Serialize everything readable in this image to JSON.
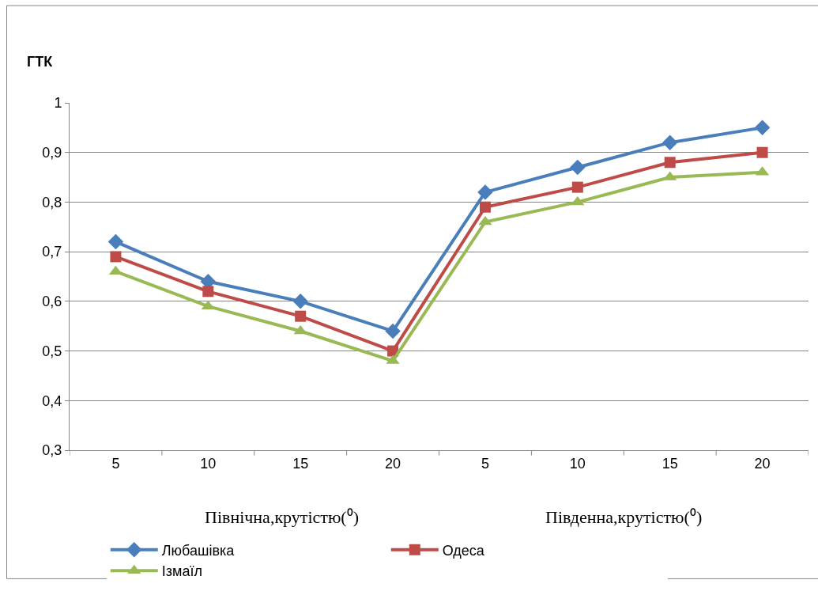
{
  "chart_data": {
    "type": "line",
    "ylabel": "ГТК",
    "categories": [
      "5",
      "10",
      "15",
      "20",
      "5",
      "10",
      "15",
      "20"
    ],
    "series": [
      {
        "name": "Любашівка",
        "color": "#4a7ebb",
        "marker": "diamond",
        "values": [
          0.72,
          0.64,
          0.6,
          0.54,
          0.82,
          0.87,
          0.92,
          0.95
        ]
      },
      {
        "name": "Одеса",
        "color": "#be4b48",
        "marker": "square",
        "values": [
          0.69,
          0.62,
          0.57,
          0.5,
          0.79,
          0.83,
          0.88,
          0.9
        ]
      },
      {
        "name": "Ізмаїл",
        "color": "#98b954",
        "marker": "triangle",
        "values": [
          0.66,
          0.59,
          0.54,
          0.48,
          0.76,
          0.8,
          0.85,
          0.86
        ]
      }
    ],
    "annotations": [
      "Північна,крутістю(⁰)",
      "Південна,крутістю(⁰)"
    ],
    "ylim": [
      0.3,
      1
    ],
    "yticks": [
      {
        "value": 0.3,
        "label": "0,3"
      },
      {
        "value": 0.4,
        "label": "0,4"
      },
      {
        "value": 0.5,
        "label": "0,5"
      },
      {
        "value": 0.6,
        "label": "0,6"
      },
      {
        "value": 0.7,
        "label": "0,7"
      },
      {
        "value": 0.8,
        "label": "0,8"
      },
      {
        "value": 0.9,
        "label": "0,9"
      },
      {
        "value": 1,
        "label": "1"
      }
    ],
    "grid": "y",
    "legend": "bottom",
    "line_style": "solid"
  }
}
